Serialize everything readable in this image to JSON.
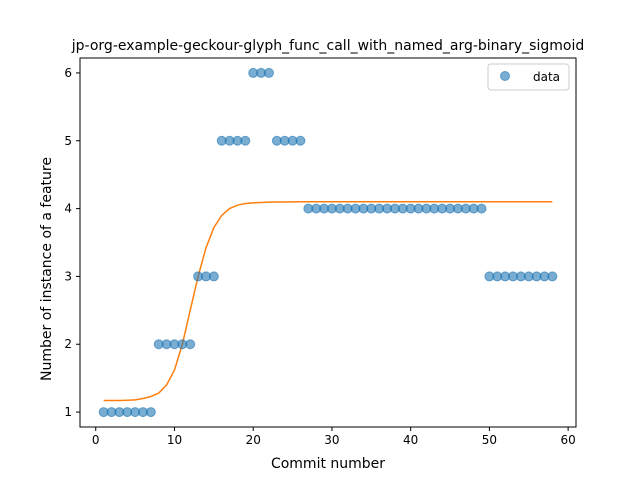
{
  "chart_data": {
    "type": "scatter",
    "title": "jp-org-example-geckour-glyph_func_call_with_named_arg-binary_sigmoid",
    "xlabel": "Commit number",
    "ylabel": "Number of instance of a feature",
    "xlim": [
      -2,
      61
    ],
    "ylim": [
      0.78,
      6.22
    ],
    "xticks": [
      0,
      10,
      20,
      30,
      40,
      50,
      60
    ],
    "yticks": [
      1,
      2,
      3,
      4,
      5,
      6
    ],
    "grid": false,
    "legend_position": "top-right",
    "series": [
      {
        "name": "data",
        "kind": "scatter",
        "color": "#1f77b4",
        "x": [
          1,
          2,
          3,
          4,
          5,
          6,
          7,
          8,
          9,
          10,
          11,
          12,
          13,
          14,
          15,
          16,
          17,
          18,
          19,
          20,
          21,
          22,
          23,
          24,
          25,
          26,
          27,
          28,
          29,
          30,
          31,
          32,
          33,
          34,
          35,
          36,
          37,
          38,
          39,
          40,
          41,
          42,
          43,
          44,
          45,
          46,
          47,
          48,
          49,
          50,
          51,
          52,
          53,
          54,
          55,
          56,
          57,
          58
        ],
        "y": [
          1,
          1,
          1,
          1,
          1,
          1,
          1,
          2,
          2,
          2,
          2,
          2,
          3,
          3,
          3,
          5,
          5,
          5,
          5,
          6,
          6,
          6,
          5,
          5,
          5,
          5,
          4,
          4,
          4,
          4,
          4,
          4,
          4,
          4,
          4,
          4,
          4,
          4,
          4,
          4,
          4,
          4,
          4,
          4,
          4,
          4,
          4,
          4,
          4,
          3,
          3,
          3,
          3,
          3,
          3,
          3,
          3,
          3
        ]
      },
      {
        "kind": "line",
        "color": "#ff7f0e",
        "x": [
          1,
          2,
          3,
          4,
          5,
          6,
          7,
          8,
          9,
          10,
          11,
          12,
          13,
          14,
          15,
          16,
          17,
          18,
          19,
          20,
          21,
          22,
          23,
          24,
          25,
          26,
          27,
          28,
          29,
          30,
          31,
          32,
          33,
          34,
          35,
          36,
          37,
          38,
          39,
          40,
          41,
          42,
          43,
          44,
          45,
          46,
          47,
          48,
          49,
          50,
          51,
          52,
          53,
          54,
          55,
          56,
          57,
          58
        ],
        "y": [
          1.17,
          1.17,
          1.17,
          1.175,
          1.18,
          1.2,
          1.23,
          1.28,
          1.4,
          1.62,
          2.0,
          2.5,
          3.0,
          3.42,
          3.72,
          3.9,
          4.0,
          4.05,
          4.075,
          4.085,
          4.09,
          4.095,
          4.097,
          4.098,
          4.099,
          4.1,
          4.1,
          4.1,
          4.1,
          4.1,
          4.1,
          4.1,
          4.1,
          4.1,
          4.1,
          4.1,
          4.1,
          4.1,
          4.1,
          4.1,
          4.1,
          4.1,
          4.1,
          4.1,
          4.1,
          4.1,
          4.1,
          4.1,
          4.1,
          4.1,
          4.1,
          4.1,
          4.1,
          4.1,
          4.1,
          4.1,
          4.1,
          4.1
        ]
      }
    ]
  }
}
